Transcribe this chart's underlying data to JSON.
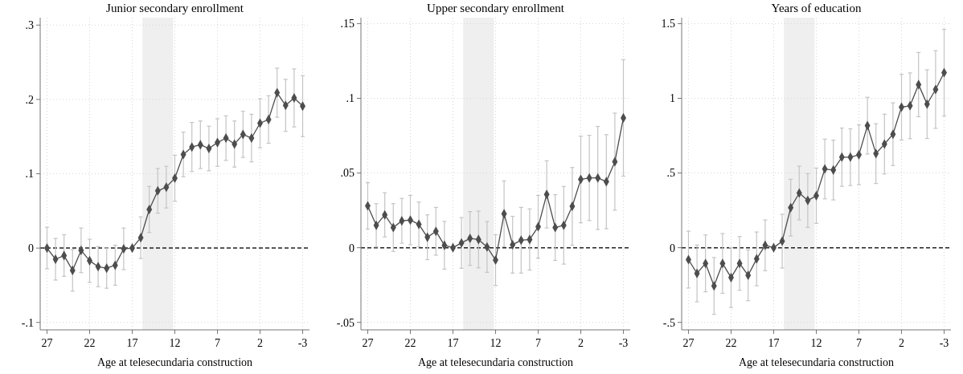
{
  "chart_data": [
    {
      "type": "line",
      "title": "Junior secondary enrollment",
      "xlabel": "Age at telesecundaria construction",
      "x": [
        27,
        26,
        25,
        24,
        23,
        22,
        21,
        20,
        19,
        18,
        17,
        16,
        15,
        14,
        13,
        12,
        11,
        10,
        9,
        8,
        7,
        6,
        5,
        4,
        3,
        2,
        1,
        0,
        -1,
        -2,
        -3
      ],
      "series": [
        {
          "color": "#4d4d4d",
          "values": [
            0,
            -0.015,
            -0.01,
            -0.03,
            -0.003,
            -0.017,
            -0.025,
            -0.027,
            -0.023,
            -0.001,
            0,
            0.014,
            0.052,
            0.077,
            0.082,
            0.094,
            0.126,
            0.136,
            0.139,
            0.134,
            0.142,
            0.148,
            0.14,
            0.153,
            0.148,
            0.168,
            0.173,
            0.209,
            0.192,
            0.202,
            0.191
          ],
          "errors": [
            0.028,
            0.028,
            0.028,
            0.028,
            0.03,
            0.029,
            0.027,
            0.027,
            0.027,
            0.028,
            null,
            0.028,
            0.031,
            0.03,
            0.028,
            0.031,
            0.03,
            0.033,
            0.032,
            0.03,
            0.032,
            0.03,
            0.031,
            0.031,
            0.032,
            0.033,
            0.032,
            0.033,
            0.035,
            0.039,
            0.041
          ]
        }
      ],
      "xlim": [
        27.8,
        -3.8
      ],
      "xticks": [
        27,
        22,
        17,
        12,
        7,
        2,
        -3
      ],
      "ylim": [
        -0.11,
        0.31
      ],
      "yticks": [
        {
          "value": -0.1,
          "label": "-.1"
        },
        {
          "value": 0,
          "label": "0"
        },
        {
          "value": 0.1,
          "label": ".1"
        },
        {
          "value": 0.2,
          "label": ".2"
        },
        {
          "value": 0.3,
          "label": ".3"
        }
      ],
      "grid": true,
      "marker": "diamond",
      "line_style": "solid",
      "ref_lines": [
        {
          "axis": "y",
          "value": 0,
          "color": "#222222",
          "line_style": "dashed"
        }
      ],
      "bands": [
        {
          "axis": "x",
          "from": 15.8,
          "to": 12.2,
          "color": "#efefef"
        }
      ]
    },
    {
      "type": "line",
      "title": "Upper secondary enrollment",
      "xlabel": "Age at telesecundaria construction",
      "x": [
        27,
        26,
        25,
        24,
        23,
        22,
        21,
        20,
        19,
        18,
        17,
        16,
        15,
        14,
        13,
        12,
        11,
        10,
        9,
        8,
        7,
        6,
        5,
        4,
        3,
        2,
        1,
        0,
        -1,
        -2,
        -3
      ],
      "series": [
        {
          "color": "#4d4d4d",
          "values": [
            0.028,
            0.015,
            0.022,
            0.0135,
            0.018,
            0.0185,
            0.0156,
            0.007,
            0.011,
            0.0016,
            0,
            0.0032,
            0.0062,
            0.0055,
            0.0005,
            -0.0083,
            0.0227,
            0.002,
            0.005,
            0.0055,
            0.014,
            0.0357,
            0.0135,
            0.015,
            0.0277,
            0.0457,
            0.0467,
            0.0467,
            0.0442,
            0.0576,
            0.0869
          ],
          "errors": [
            0.0155,
            0.0145,
            0.0148,
            0.016,
            0.015,
            0.0165,
            0.015,
            0.015,
            0.016,
            0.016,
            null,
            0.017,
            0.018,
            0.019,
            0.017,
            0.017,
            0.022,
            0.019,
            0.022,
            0.0205,
            0.021,
            0.0225,
            0.022,
            0.026,
            0.026,
            0.029,
            0.0285,
            0.0345,
            0.0315,
            0.0325,
            0.039
          ]
        }
      ],
      "xlim": [
        27.8,
        -3.8
      ],
      "xticks": [
        27,
        22,
        17,
        12,
        7,
        2,
        -3
      ],
      "ylim": [
        -0.055,
        0.154
      ],
      "yticks": [
        {
          "value": -0.05,
          "label": "-.05"
        },
        {
          "value": 0,
          "label": "0"
        },
        {
          "value": 0.05,
          "label": ".05"
        },
        {
          "value": 0.1,
          "label": ".1"
        },
        {
          "value": 0.15,
          "label": ".15"
        }
      ],
      "grid": true,
      "marker": "diamond",
      "line_style": "solid",
      "ref_lines": [
        {
          "axis": "y",
          "value": 0,
          "color": "#222222",
          "line_style": "dashed"
        }
      ],
      "bands": [
        {
          "axis": "x",
          "from": 15.8,
          "to": 12.2,
          "color": "#efefef"
        }
      ]
    },
    {
      "type": "line",
      "title": "Years of education",
      "xlabel": "Age at telesecundaria construction",
      "x": [
        27,
        26,
        25,
        24,
        23,
        22,
        21,
        20,
        19,
        18,
        17,
        16,
        15,
        14,
        13,
        12,
        11,
        10,
        9,
        8,
        7,
        6,
        5,
        4,
        3,
        2,
        1,
        0,
        -1,
        -2,
        -3
      ],
      "series": [
        {
          "color": "#4d4d4d",
          "values": [
            -0.08,
            -0.172,
            -0.105,
            -0.256,
            -0.105,
            -0.2,
            -0.105,
            -0.185,
            -0.075,
            0.016,
            0,
            0.044,
            0.268,
            0.366,
            0.316,
            0.348,
            0.527,
            0.52,
            0.606,
            0.606,
            0.622,
            0.817,
            0.63,
            0.694,
            0.76,
            0.941,
            0.95,
            1.092,
            0.961,
            1.059,
            1.172
          ],
          "errors": [
            0.19,
            0.19,
            0.19,
            0.19,
            0.2,
            0.2,
            0.18,
            0.17,
            0.18,
            0.17,
            null,
            0.18,
            0.19,
            0.18,
            0.18,
            0.185,
            0.2,
            0.2,
            0.195,
            0.19,
            0.2,
            0.19,
            0.2,
            0.2,
            0.21,
            0.22,
            0.22,
            0.215,
            0.23,
            0.26,
            0.29
          ]
        }
      ],
      "xlim": [
        27.8,
        -3.8
      ],
      "xticks": [
        27,
        22,
        17,
        12,
        7,
        2,
        -3
      ],
      "ylim": [
        -0.55,
        1.54
      ],
      "yticks": [
        {
          "value": -0.5,
          "label": "-.5"
        },
        {
          "value": 0,
          "label": "0"
        },
        {
          "value": 0.5,
          "label": ".5"
        },
        {
          "value": 1,
          "label": "1"
        },
        {
          "value": 1.5,
          "label": "1.5"
        }
      ],
      "grid": true,
      "marker": "diamond",
      "line_style": "solid",
      "ref_lines": [
        {
          "axis": "y",
          "value": 0,
          "color": "#222222",
          "line_style": "dashed"
        }
      ],
      "bands": [
        {
          "axis": "x",
          "from": 15.8,
          "to": 12.2,
          "color": "#efefef"
        }
      ]
    }
  ]
}
